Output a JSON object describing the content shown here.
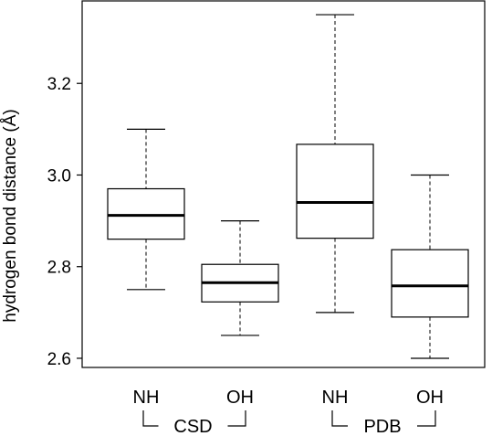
{
  "chart_data": {
    "type": "boxplot",
    "title": "",
    "xlabel": "",
    "ylabel": "hydrogen bond distance (Å)",
    "ylim": [
      2.58,
      3.38
    ],
    "yticks": [
      "2.6",
      "2.8",
      "3.0",
      "3.2"
    ],
    "grid": false,
    "categories": [
      "NH",
      "OH",
      "NH",
      "OH"
    ],
    "groups": [
      {
        "label": "CSD",
        "categories": [
          0,
          1
        ]
      },
      {
        "label": "PDB",
        "categories": [
          2,
          3
        ]
      }
    ],
    "boxes": [
      {
        "min": 2.75,
        "q1": 2.86,
        "median": 2.912,
        "q3": 2.97,
        "max": 3.1
      },
      {
        "min": 2.65,
        "q1": 2.723,
        "median": 2.765,
        "q3": 2.805,
        "max": 2.9
      },
      {
        "min": 2.7,
        "q1": 2.862,
        "median": 2.94,
        "q3": 3.067,
        "max": 3.35
      },
      {
        "min": 2.6,
        "q1": 2.69,
        "median": 2.758,
        "q3": 2.837,
        "max": 3.0
      }
    ]
  }
}
